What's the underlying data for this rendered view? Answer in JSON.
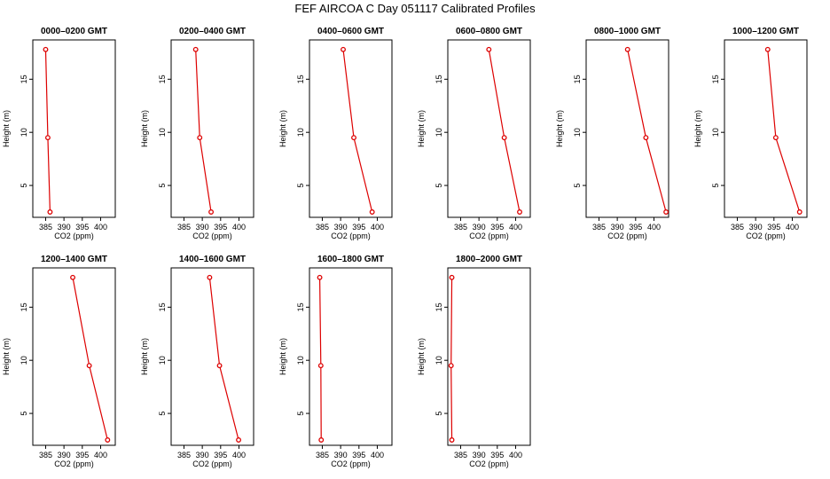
{
  "title": "FEF AIRCOA C  Day 051117  Calibrated Profiles",
  "colors": {
    "series": "#dd0000",
    "axis": "#000000"
  },
  "chart_data": [
    {
      "type": "line",
      "title": "0000–0200 GMT",
      "xlabel": "CO2 (ppm)",
      "ylabel": "Height (m)",
      "xlim": [
        381.5,
        404
      ],
      "ylim": [
        2,
        18.7
      ],
      "xticks": [
        "385",
        "390",
        "395",
        "400"
      ],
      "yticks": [
        "5",
        "10",
        "15"
      ],
      "x": [
        386.2,
        385.6,
        385.0
      ],
      "y": [
        2.5,
        9.5,
        17.8
      ]
    },
    {
      "type": "line",
      "title": "0200–0400 GMT",
      "xlabel": "CO2 (ppm)",
      "ylabel": "Height (m)",
      "xlim": [
        381.5,
        404
      ],
      "ylim": [
        2,
        18.7
      ],
      "xticks": [
        "385",
        "390",
        "395",
        "400"
      ],
      "yticks": [
        "5",
        "10",
        "15"
      ],
      "x": [
        392.4,
        389.3,
        388.2
      ],
      "y": [
        2.5,
        9.5,
        17.8
      ]
    },
    {
      "type": "line",
      "title": "0400–0600 GMT",
      "xlabel": "CO2 (ppm)",
      "ylabel": "Height (m)",
      "xlim": [
        381.5,
        404
      ],
      "ylim": [
        2,
        18.7
      ],
      "xticks": [
        "385",
        "390",
        "395",
        "400"
      ],
      "yticks": [
        "5",
        "10",
        "15"
      ],
      "x": [
        398.6,
        393.6,
        390.7
      ],
      "y": [
        2.5,
        9.5,
        17.8
      ]
    },
    {
      "type": "line",
      "title": "0600–0800 GMT",
      "xlabel": "CO2 (ppm)",
      "ylabel": "Height (m)",
      "xlim": [
        381.5,
        404
      ],
      "ylim": [
        2,
        18.7
      ],
      "xticks": [
        "385",
        "390",
        "395",
        "400"
      ],
      "yticks": [
        "5",
        "10",
        "15"
      ],
      "x": [
        401.1,
        396.9,
        392.7
      ],
      "y": [
        2.5,
        9.5,
        17.8
      ]
    },
    {
      "type": "line",
      "title": "0800–1000 GMT",
      "xlabel": "CO2 (ppm)",
      "ylabel": "Height (m)",
      "xlim": [
        381.5,
        404
      ],
      "ylim": [
        2,
        18.7
      ],
      "xticks": [
        "385",
        "390",
        "395",
        "400"
      ],
      "yticks": [
        "5",
        "10",
        "15"
      ],
      "x": [
        403.3,
        397.8,
        392.8
      ],
      "y": [
        2.5,
        9.5,
        17.8
      ]
    },
    {
      "type": "line",
      "title": "1000–1200 GMT",
      "xlabel": "CO2 (ppm)",
      "ylabel": "Height (m)",
      "xlim": [
        381.5,
        404
      ],
      "ylim": [
        2,
        18.7
      ],
      "xticks": [
        "385",
        "390",
        "395",
        "400"
      ],
      "yticks": [
        "5",
        "10",
        "15"
      ],
      "x": [
        402.0,
        395.5,
        393.3
      ],
      "y": [
        2.5,
        9.5,
        17.8
      ]
    },
    {
      "type": "line",
      "title": "1200–1400 GMT",
      "xlabel": "CO2 (ppm)",
      "ylabel": "Height (m)",
      "xlim": [
        381.5,
        404
      ],
      "ylim": [
        2,
        18.7
      ],
      "xticks": [
        "385",
        "390",
        "395",
        "400"
      ],
      "yticks": [
        "5",
        "10",
        "15"
      ],
      "x": [
        401.9,
        396.9,
        392.4
      ],
      "y": [
        2.5,
        9.5,
        17.8
      ]
    },
    {
      "type": "line",
      "title": "1400–1600 GMT",
      "xlabel": "CO2 (ppm)",
      "ylabel": "Height (m)",
      "xlim": [
        381.5,
        404
      ],
      "ylim": [
        2,
        18.7
      ],
      "xticks": [
        "385",
        "390",
        "395",
        "400"
      ],
      "yticks": [
        "5",
        "10",
        "15"
      ],
      "x": [
        399.9,
        394.7,
        392.0
      ],
      "y": [
        2.5,
        9.5,
        17.8
      ]
    },
    {
      "type": "line",
      "title": "1600–1800 GMT",
      "xlabel": "CO2 (ppm)",
      "ylabel": "Height (m)",
      "xlim": [
        381.5,
        404
      ],
      "ylim": [
        2,
        18.7
      ],
      "xticks": [
        "385",
        "390",
        "395",
        "400"
      ],
      "yticks": [
        "5",
        "10",
        "15"
      ],
      "x": [
        384.7,
        384.6,
        384.3
      ],
      "y": [
        2.5,
        9.5,
        17.8
      ]
    },
    {
      "type": "line",
      "title": "1800–2000 GMT",
      "xlabel": "CO2 (ppm)",
      "ylabel": "Height (m)",
      "xlim": [
        381.5,
        404
      ],
      "ylim": [
        2,
        18.7
      ],
      "xticks": [
        "385",
        "390",
        "395",
        "400"
      ],
      "yticks": [
        "5",
        "10",
        "15"
      ],
      "x": [
        382.6,
        382.4,
        382.6
      ],
      "y": [
        2.5,
        9.5,
        17.8
      ]
    }
  ]
}
